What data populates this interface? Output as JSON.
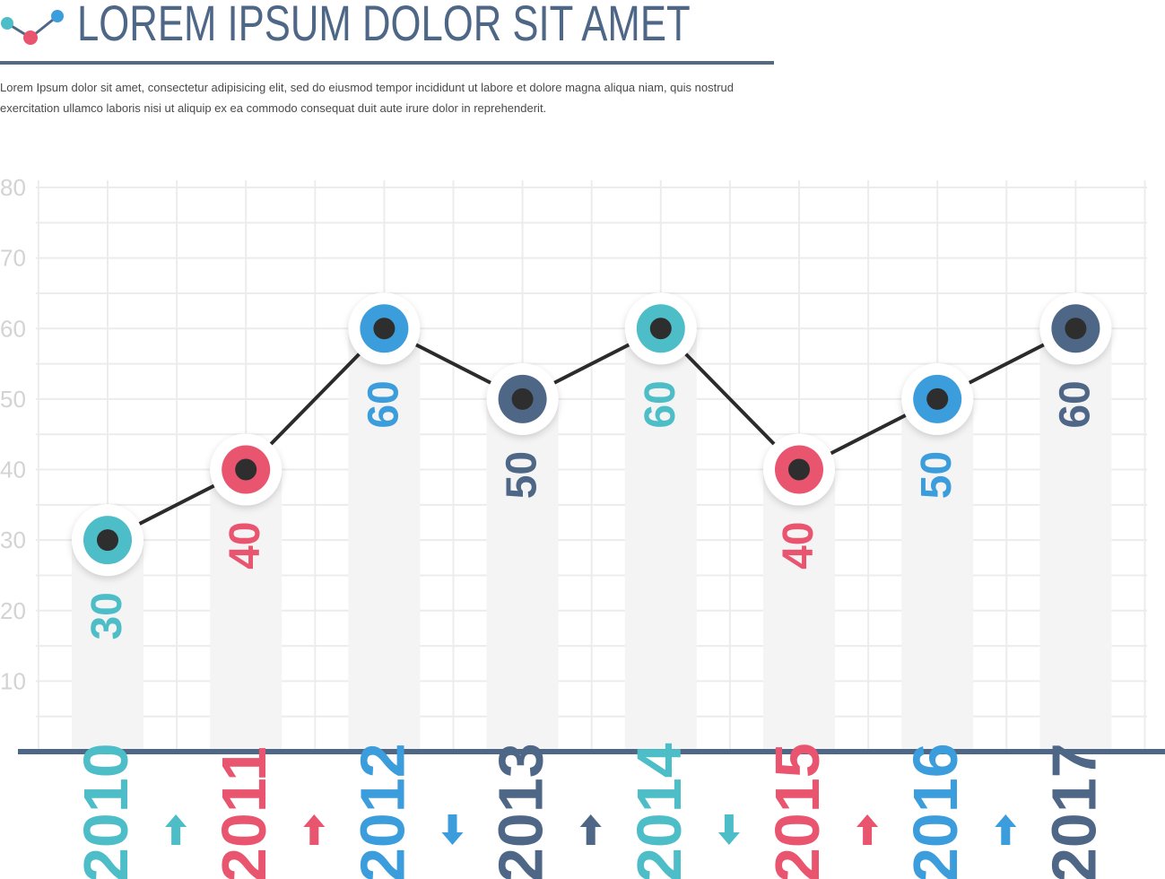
{
  "header": {
    "title": "LOREM IPSUM DOLOR SIT AMET",
    "description": "Lorem Ipsum dolor sit amet, consectetur adipisicing elit, sed do eiusmod tempor incididunt ut labore et dolore magna aliqua niam, quis nostrud exercitation ullamco laboris nisi ut aliquip ex ea commodo consequat duit aute irure dolor in reprehenderit.",
    "logo_icon": "line-chart-icon"
  },
  "colors": {
    "teal": "#4dbdc8",
    "pink": "#e9546e",
    "blue": "#3c9ddc",
    "slate": "#4f6787",
    "line": "#2b2b2b",
    "grid": "#ececec",
    "column": "#f4f4f4",
    "tick_label": "#d3d3d3",
    "baseline": "#4f6787"
  },
  "chart_data": {
    "type": "line",
    "title": "",
    "xlabel": "",
    "ylabel": "",
    "ylim": [
      0,
      80
    ],
    "yticks": [
      10,
      20,
      30,
      40,
      50,
      60,
      70,
      80
    ],
    "grid": true,
    "categories": [
      "2010",
      "2011",
      "2012",
      "2013",
      "2014",
      "2015",
      "2016",
      "2017"
    ],
    "values": [
      30,
      40,
      60,
      50,
      60,
      40,
      50,
      60
    ],
    "point_colors": [
      "teal",
      "pink",
      "blue",
      "slate",
      "teal",
      "pink",
      "blue",
      "slate"
    ],
    "change_arrows": [
      {
        "direction": "up",
        "color": "teal"
      },
      {
        "direction": "up",
        "color": "pink"
      },
      {
        "direction": "down",
        "color": "blue"
      },
      {
        "direction": "up",
        "color": "slate"
      },
      {
        "direction": "down",
        "color": "teal"
      },
      {
        "direction": "up",
        "color": "pink"
      },
      {
        "direction": "up",
        "color": "blue"
      }
    ]
  }
}
